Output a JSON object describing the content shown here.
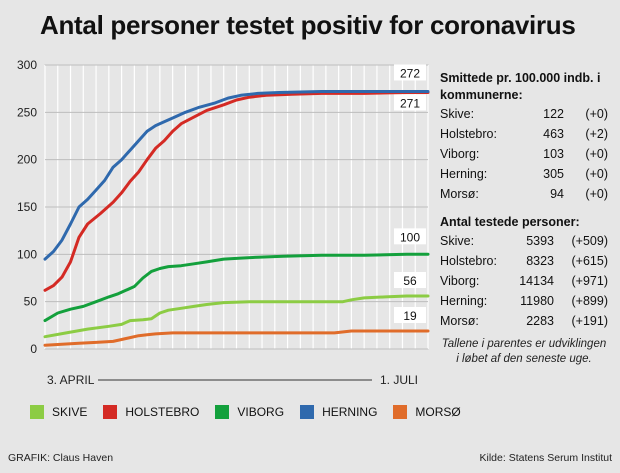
{
  "chart_data": {
    "type": "line",
    "title": "Antal personer testet positiv for coronavirus",
    "xlabel_start": "3. APRIL",
    "xlabel_end": "1. JULI",
    "ylim": [
      0,
      300
    ],
    "yticks": [
      0,
      50,
      100,
      150,
      200,
      250,
      300
    ],
    "n_days": 90,
    "series": [
      {
        "name": "SKIVE",
        "color": "#8ccc44",
        "end_label": "56",
        "points": [
          [
            0,
            13
          ],
          [
            5,
            17
          ],
          [
            10,
            21
          ],
          [
            15,
            24
          ],
          [
            18,
            26
          ],
          [
            20,
            30
          ],
          [
            23,
            31
          ],
          [
            25,
            32
          ],
          [
            27,
            38
          ],
          [
            29,
            41
          ],
          [
            32,
            43
          ],
          [
            35,
            45
          ],
          [
            38,
            47
          ],
          [
            42,
            49
          ],
          [
            48,
            50
          ],
          [
            55,
            50
          ],
          [
            62,
            50
          ],
          [
            70,
            50
          ],
          [
            72,
            52
          ],
          [
            75,
            54
          ],
          [
            80,
            55
          ],
          [
            85,
            56
          ],
          [
            90,
            56
          ]
        ]
      },
      {
        "name": "HOLSTEBRO",
        "color": "#d42a24",
        "end_label": "271",
        "points": [
          [
            0,
            62
          ],
          [
            2,
            67
          ],
          [
            4,
            76
          ],
          [
            6,
            92
          ],
          [
            8,
            118
          ],
          [
            10,
            132
          ],
          [
            13,
            143
          ],
          [
            16,
            155
          ],
          [
            18,
            165
          ],
          [
            20,
            177
          ],
          [
            22,
            187
          ],
          [
            24,
            200
          ],
          [
            26,
            212
          ],
          [
            28,
            220
          ],
          [
            30,
            230
          ],
          [
            32,
            238
          ],
          [
            35,
            245
          ],
          [
            38,
            252
          ],
          [
            42,
            258
          ],
          [
            45,
            263
          ],
          [
            48,
            266
          ],
          [
            52,
            268
          ],
          [
            58,
            269
          ],
          [
            65,
            270
          ],
          [
            75,
            270
          ],
          [
            85,
            271
          ],
          [
            90,
            271
          ]
        ]
      },
      {
        "name": "VIBORG",
        "color": "#13a03c",
        "end_label": "100",
        "points": [
          [
            0,
            30
          ],
          [
            3,
            38
          ],
          [
            6,
            42
          ],
          [
            9,
            45
          ],
          [
            12,
            50
          ],
          [
            15,
            55
          ],
          [
            17,
            58
          ],
          [
            19,
            62
          ],
          [
            21,
            66
          ],
          [
            23,
            75
          ],
          [
            25,
            82
          ],
          [
            27,
            85
          ],
          [
            29,
            87
          ],
          [
            32,
            88
          ],
          [
            35,
            90
          ],
          [
            38,
            92
          ],
          [
            42,
            95
          ],
          [
            46,
            96
          ],
          [
            50,
            97
          ],
          [
            56,
            98
          ],
          [
            65,
            99
          ],
          [
            75,
            99
          ],
          [
            85,
            100
          ],
          [
            90,
            100
          ]
        ]
      },
      {
        "name": "HERNING",
        "color": "#2f69ad",
        "end_label": "272",
        "points": [
          [
            0,
            95
          ],
          [
            2,
            103
          ],
          [
            4,
            115
          ],
          [
            6,
            132
          ],
          [
            8,
            150
          ],
          [
            10,
            158
          ],
          [
            12,
            168
          ],
          [
            14,
            178
          ],
          [
            16,
            192
          ],
          [
            18,
            200
          ],
          [
            20,
            210
          ],
          [
            22,
            220
          ],
          [
            24,
            230
          ],
          [
            26,
            236
          ],
          [
            28,
            240
          ],
          [
            30,
            244
          ],
          [
            33,
            250
          ],
          [
            36,
            255
          ],
          [
            40,
            260
          ],
          [
            43,
            265
          ],
          [
            46,
            268
          ],
          [
            50,
            270
          ],
          [
            55,
            271
          ],
          [
            65,
            272
          ],
          [
            75,
            272
          ],
          [
            90,
            272
          ]
        ]
      },
      {
        "name": "MORSØ",
        "color": "#e06c2a",
        "end_label": "19",
        "points": [
          [
            0,
            4
          ],
          [
            4,
            5
          ],
          [
            8,
            6
          ],
          [
            12,
            7
          ],
          [
            16,
            8
          ],
          [
            18,
            10
          ],
          [
            20,
            12
          ],
          [
            22,
            14
          ],
          [
            24,
            15
          ],
          [
            26,
            16
          ],
          [
            30,
            17
          ],
          [
            40,
            17
          ],
          [
            55,
            17
          ],
          [
            68,
            17
          ],
          [
            72,
            19
          ],
          [
            80,
            19
          ],
          [
            90,
            19
          ]
        ]
      }
    ]
  },
  "sidebar": {
    "infection_heading": "Smittede pr. 100.000 indb. i kommunerne:",
    "infection_rows": [
      {
        "name": "Skive:",
        "value": "122",
        "change": "(+0)"
      },
      {
        "name": "Holstebro:",
        "value": "463",
        "change": "(+2)"
      },
      {
        "name": "Viborg:",
        "value": "103",
        "change": "(+0)"
      },
      {
        "name": "Herning:",
        "value": "305",
        "change": "(+0)"
      },
      {
        "name": "Morsø:",
        "value": "94",
        "change": "(+0)"
      }
    ],
    "tested_heading": "Antal testede personer:",
    "tested_rows": [
      {
        "name": "Skive:",
        "value": "5393",
        "change": "(+509)"
      },
      {
        "name": "Holstebro:",
        "value": "8323",
        "change": "(+615)"
      },
      {
        "name": "Viborg:",
        "value": "14134",
        "change": "(+971)"
      },
      {
        "name": "Herning:",
        "value": "11980",
        "change": "(+899)"
      },
      {
        "name": "Morsø:",
        "value": "2283",
        "change": "(+191)"
      }
    ],
    "note": "Tallene i parentes er udviklingen i løbet af den seneste uge."
  },
  "footer": {
    "credit": "GRAFIK: Claus Haven",
    "source": "Kilde: Statens Serum Institut"
  }
}
